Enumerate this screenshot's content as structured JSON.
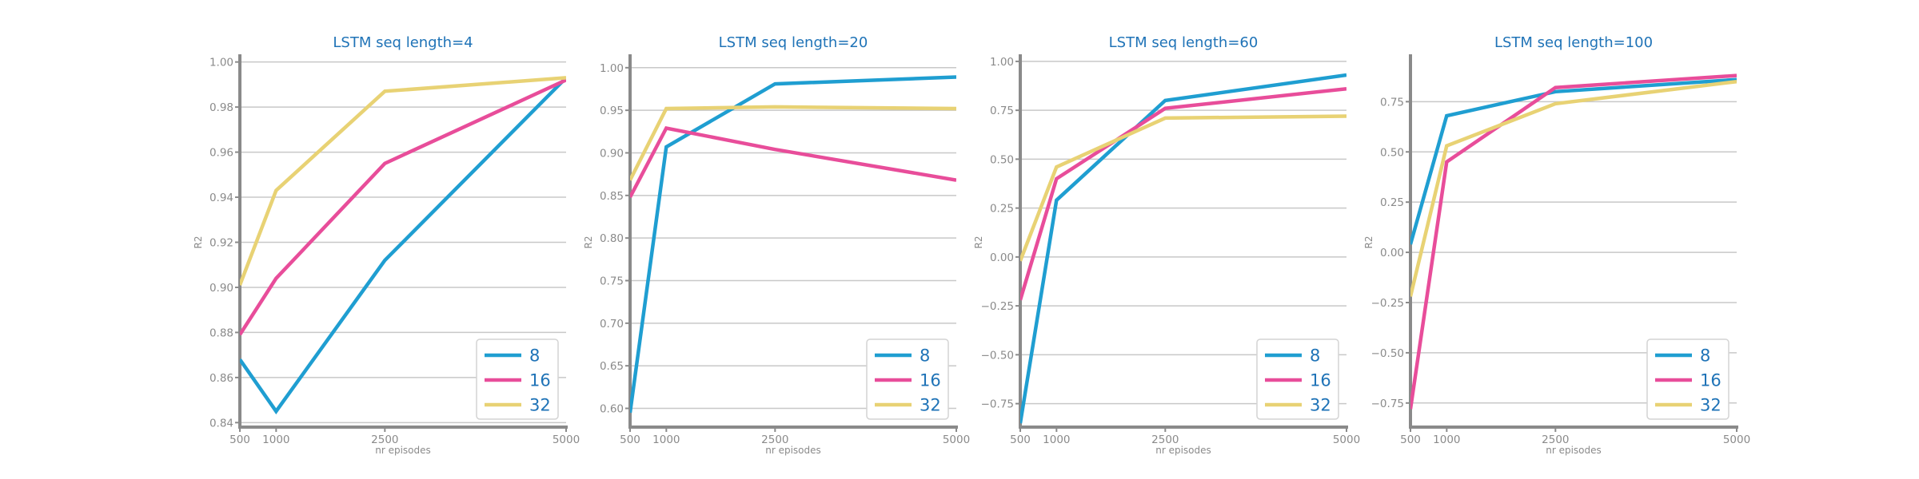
{
  "colors": {
    "8": "#1f9ed1",
    "16": "#e84d9a",
    "32": "#e8d274",
    "title": "#1f73b7",
    "grid": "#c8c8c8",
    "axis": "#8a8a8a"
  },
  "chart_data": [
    {
      "type": "line",
      "title": "LSTM seq length=4",
      "xlabel": "nr episodes",
      "ylabel": "R2",
      "x": [
        500,
        1000,
        2500,
        5000
      ],
      "xticks": [
        "500",
        "1000",
        "2500",
        "5000"
      ],
      "xlim": [
        500,
        5000
      ],
      "ylim": [
        0.838,
        1.002
      ],
      "yticks": [
        0.84,
        0.86,
        0.88,
        0.9,
        0.92,
        0.94,
        0.96,
        0.98,
        1.0
      ],
      "ytick_labels": [
        "0.84",
        "0.86",
        "0.88",
        "0.90",
        "0.92",
        "0.94",
        "0.96",
        "0.98",
        "1.00"
      ],
      "grid": true,
      "legend_position": "bottom-right",
      "series": [
        {
          "name": "8",
          "values": [
            0.868,
            0.845,
            0.912,
            0.993
          ]
        },
        {
          "name": "16",
          "values": [
            0.879,
            0.904,
            0.955,
            0.992
          ]
        },
        {
          "name": "32",
          "values": [
            0.901,
            0.943,
            0.987,
            0.993
          ]
        }
      ]
    },
    {
      "type": "line",
      "title": "LSTM seq length=20",
      "xlabel": "nr episodes",
      "ylabel": "R2",
      "x": [
        500,
        1000,
        2500,
        5000
      ],
      "xticks": [
        "500",
        "1000",
        "2500",
        "5000"
      ],
      "xlim": [
        500,
        5000
      ],
      "ylim": [
        0.578,
        1.012
      ],
      "yticks": [
        0.6,
        0.65,
        0.7,
        0.75,
        0.8,
        0.85,
        0.9,
        0.95,
        1.0
      ],
      "ytick_labels": [
        "0.60",
        "0.65",
        "0.70",
        "0.75",
        "0.80",
        "0.85",
        "0.90",
        "0.95",
        "1.00"
      ],
      "grid": true,
      "legend_position": "bottom-right",
      "series": [
        {
          "name": "8",
          "values": [
            0.595,
            0.907,
            0.981,
            0.989
          ]
        },
        {
          "name": "16",
          "values": [
            0.848,
            0.929,
            0.904,
            0.868
          ]
        },
        {
          "name": "32",
          "values": [
            0.868,
            0.952,
            0.954,
            0.952
          ]
        }
      ]
    },
    {
      "type": "line",
      "title": "LSTM seq length=60",
      "xlabel": "nr episodes",
      "ylabel": "R2",
      "x": [
        500,
        1000,
        2500,
        5000
      ],
      "xticks": [
        "500",
        "1000",
        "2500",
        "5000"
      ],
      "xlim": [
        500,
        5000
      ],
      "ylim": [
        -0.87,
        1.02
      ],
      "yticks": [
        -0.75,
        -0.5,
        -0.25,
        0.0,
        0.25,
        0.5,
        0.75,
        1.0
      ],
      "ytick_labels": [
        "−0.75",
        "−0.50",
        "−0.25",
        "0.00",
        "0.25",
        "0.50",
        "0.75",
        "1.00"
      ],
      "grid": true,
      "legend_position": "bottom-right",
      "series": [
        {
          "name": "8",
          "values": [
            -0.85,
            0.29,
            0.8,
            0.93
          ]
        },
        {
          "name": "16",
          "values": [
            -0.22,
            0.4,
            0.76,
            0.86
          ]
        },
        {
          "name": "32",
          "values": [
            -0.02,
            0.46,
            0.71,
            0.72
          ]
        }
      ]
    },
    {
      "type": "line",
      "title": "LSTM seq length=100",
      "xlabel": "nr episodes",
      "ylabel": "R2",
      "x": [
        500,
        1000,
        2500,
        5000
      ],
      "xticks": [
        "500",
        "1000",
        "2500",
        "5000"
      ],
      "xlim": [
        500,
        5000
      ],
      "ylim": [
        -0.87,
        0.97
      ],
      "yticks": [
        -0.75,
        -0.5,
        -0.25,
        0.0,
        0.25,
        0.5,
        0.75
      ],
      "ytick_labels": [
        "−0.75",
        "−0.50",
        "−0.25",
        "0.00",
        "0.25",
        "0.50",
        "0.75"
      ],
      "grid": true,
      "legend_position": "bottom-right",
      "series": [
        {
          "name": "8",
          "values": [
            0.04,
            0.68,
            0.8,
            0.86
          ]
        },
        {
          "name": "16",
          "values": [
            -0.78,
            0.45,
            0.82,
            0.88
          ]
        },
        {
          "name": "32",
          "values": [
            -0.22,
            0.53,
            0.74,
            0.85
          ]
        }
      ]
    }
  ]
}
